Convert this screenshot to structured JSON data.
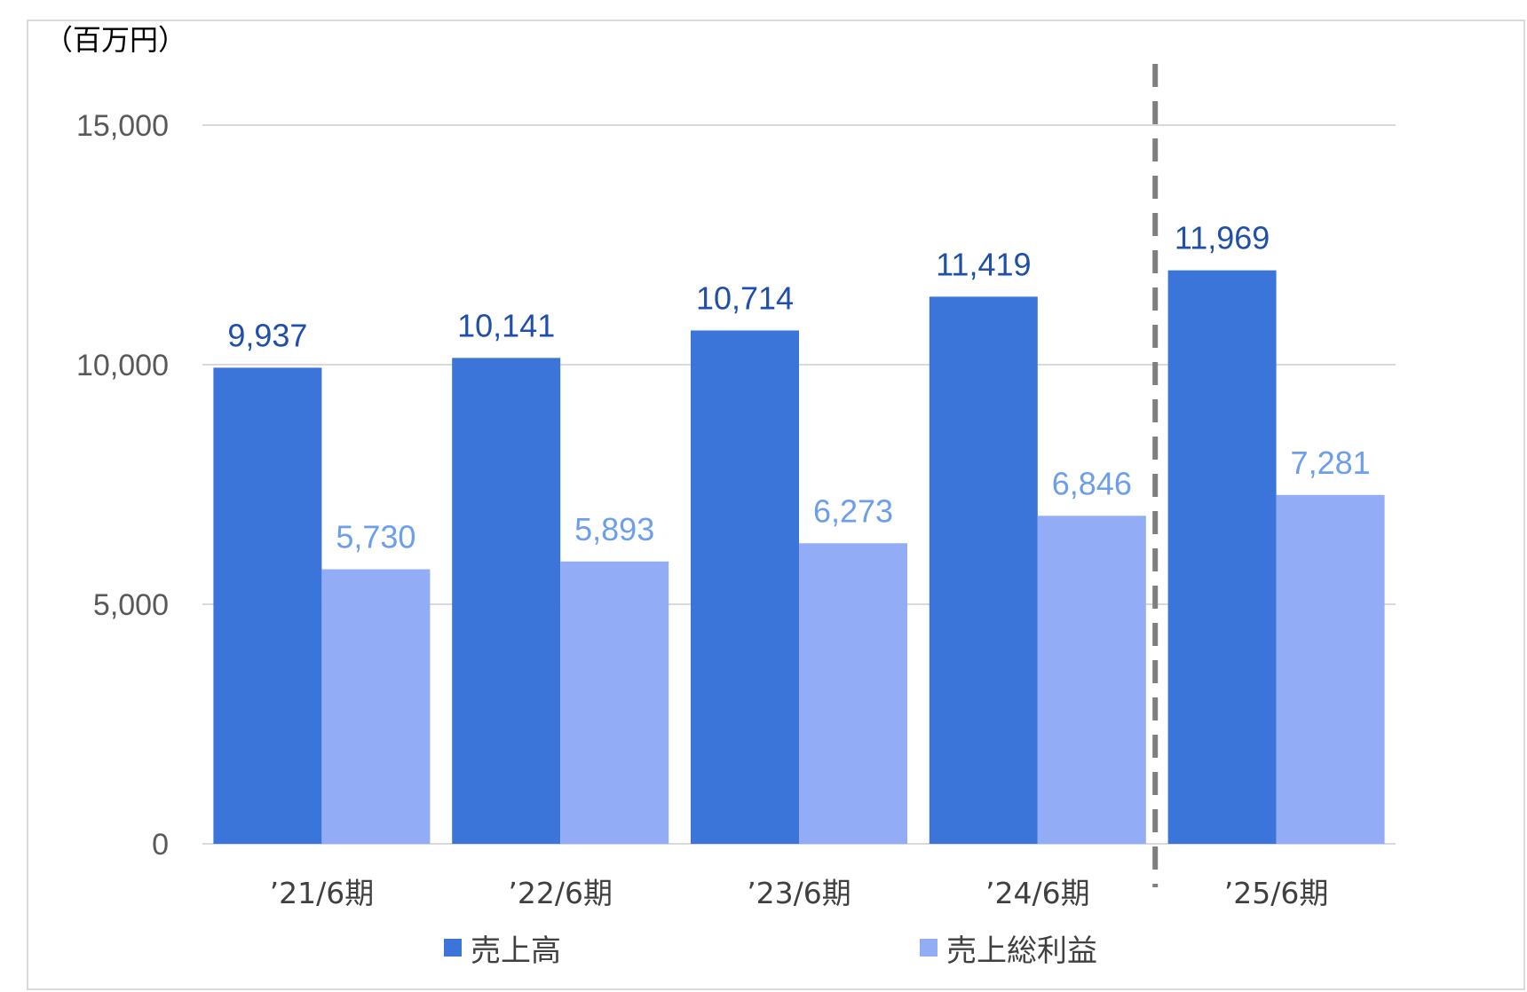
{
  "chart_data": {
    "type": "bar",
    "unit_label": "（百万円）",
    "categories": [
      "’21/6期",
      "’22/6期",
      "’23/6期",
      "’24/6期",
      "’25/6期"
    ],
    "series": [
      {
        "name": "売上高",
        "values": [
          9937,
          10141,
          10714,
          11419,
          11969
        ],
        "labels": [
          "9,937",
          "10,141",
          "10,714",
          "11,419",
          "11,969"
        ],
        "color": "#3b75d9",
        "label_color": "#1f4fa8"
      },
      {
        "name": "売上総利益",
        "values": [
          5730,
          5893,
          6273,
          6846,
          7281
        ],
        "labels": [
          "5,730",
          "5,893",
          "6,273",
          "6,846",
          "7,281"
        ],
        "color": "#92adf6",
        "label_color": "#6d9eeb"
      }
    ],
    "ylim": [
      0,
      15000
    ],
    "yticks": [
      0,
      5000,
      10000,
      15000
    ],
    "ytick_labels": [
      "0",
      "5,000",
      "10,000",
      "15,000"
    ],
    "grid": true,
    "gridline_color": "#d9d9d9",
    "divider_line": "dashed, between ’24/6期 and ’25/6期",
    "divider_color": "#7f7f7f",
    "legend_position": "bottom"
  }
}
